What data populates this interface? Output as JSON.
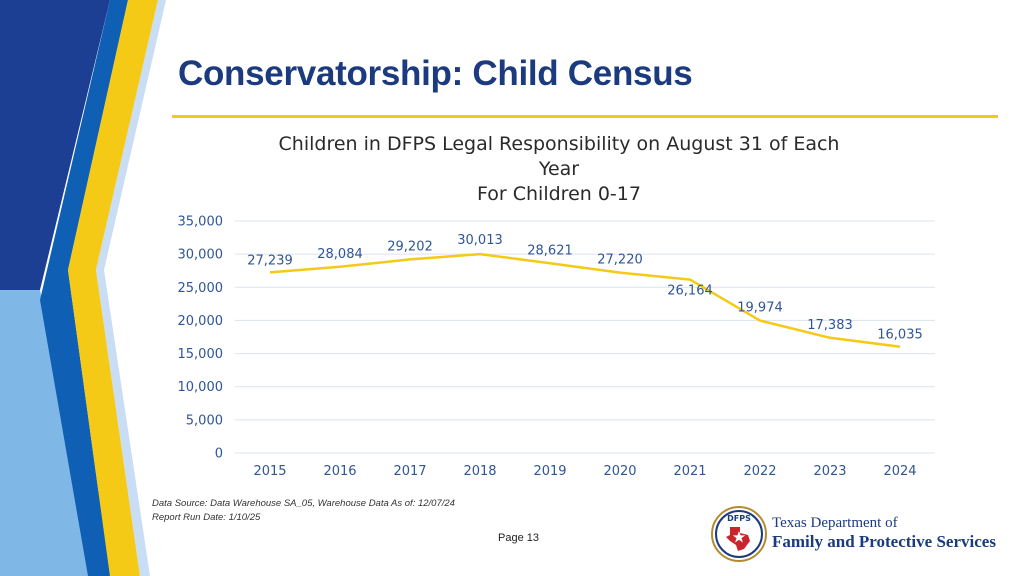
{
  "slide": {
    "title": "Conservatorship: Child Census",
    "footnote_line1": "Data Source: Data Warehouse SA_05, Warehouse Data As of: 12/07/24",
    "footnote_line2": "Report Run Date: 1/10/25",
    "page_label": "Page 13"
  },
  "organization": {
    "logo_text": "DFPS",
    "name_line1": "Texas Department of",
    "name_line2": "Family and Protective Services"
  },
  "colors": {
    "title": "#1b3b7e",
    "accent_yellow": "#f4ca16",
    "line": "#f4ca16",
    "tick_text": "#2f5597",
    "grid": "#dce3ee"
  },
  "chart_data": {
    "type": "line",
    "title_lines": [
      "Children in DFPS Legal Responsibility on August 31 of Each",
      "Year",
      "For Children 0-17"
    ],
    "categories": [
      "2015",
      "2016",
      "2017",
      "2018",
      "2019",
      "2020",
      "2021",
      "2022",
      "2023",
      "2024"
    ],
    "series": [
      {
        "name": "Children in DFPS Legal Responsibility",
        "values": [
          27239,
          28084,
          29202,
          30013,
          28621,
          27220,
          26164,
          19974,
          17383,
          16035
        ],
        "labels": [
          "27,239",
          "28,084",
          "29,202",
          "30,013",
          "28,621",
          "27,220",
          "26,164",
          "19,974",
          "17,383",
          "16,035"
        ]
      }
    ],
    "y_ticks": [
      0,
      5000,
      10000,
      15000,
      20000,
      25000,
      30000,
      35000
    ],
    "y_tick_labels": [
      "0",
      "5,000",
      "10,000",
      "15,000",
      "20,000",
      "25,000",
      "30,000",
      "35,000"
    ],
    "ylim": [
      0,
      35000
    ],
    "xlabel": "",
    "ylabel": "",
    "grid": true,
    "legend": "none"
  }
}
